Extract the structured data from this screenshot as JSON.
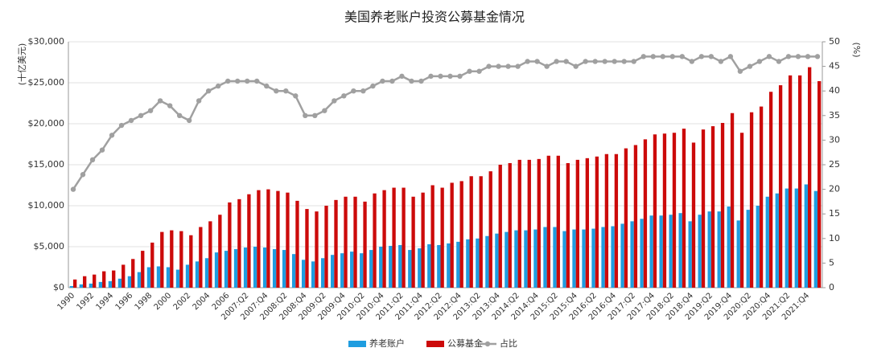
{
  "chart_data": {
    "type": "bar",
    "title": "美国养老账户投资公募基金情况",
    "ylabel": "(十亿美元)",
    "y2label": "(%)",
    "categories": [
      "1990",
      null,
      "1992",
      null,
      "1994",
      null,
      "1996",
      null,
      "1998",
      null,
      "2000",
      null,
      "2002",
      null,
      "2004",
      null,
      "2006",
      null,
      "2007:Q2",
      null,
      "2007:Q4",
      null,
      "2008:Q2",
      null,
      "2008:Q4",
      null,
      "2009:Q2",
      null,
      "2009:Q4",
      null,
      "2010:Q2",
      null,
      "2010:Q4",
      null,
      "2011:Q2",
      null,
      "2011:Q4",
      null,
      "2012:Q2",
      null,
      "2012:Q4",
      null,
      "2013:Q2",
      null,
      "2013:Q4",
      null,
      "2014:Q2",
      null,
      "2014:Q4",
      null,
      "2015:Q2",
      null,
      "2015:Q4",
      null,
      "2016:Q2",
      null,
      "2016:Q4",
      null,
      "2017:Q2",
      null,
      "2017:Q4",
      null,
      "2018:Q2",
      null,
      "2018:Q4",
      null,
      "2019:Q2",
      null,
      "2019:Q4",
      null,
      "2020:Q2",
      null,
      "2020:Q4",
      null,
      "2021:Q2",
      null,
      "2021:Q4",
      null
    ],
    "series": [
      {
        "name": "养老账户",
        "color": "#1f9de0",
        "values": [
          200,
          400,
          500,
          700,
          800,
          1100,
          1400,
          1900,
          2500,
          2600,
          2500,
          2200,
          2800,
          3200,
          3600,
          4300,
          4500,
          4700,
          4900,
          5000,
          4900,
          4700,
          4600,
          4100,
          3400,
          3200,
          3600,
          4000,
          4200,
          4400,
          4200,
          4600,
          5000,
          5100,
          5200,
          4600,
          4800,
          5300,
          5200,
          5400,
          5600,
          5900,
          6000,
          6300,
          6600,
          6800,
          7000,
          7000,
          7100,
          7400,
          7400,
          6900,
          7100,
          7100,
          7200,
          7400,
          7500,
          7800,
          8100,
          8400,
          8800,
          8800,
          8900,
          9100,
          8100,
          8900,
          9300,
          9300,
          9900,
          8200,
          9500,
          10000,
          11100,
          11500,
          12100,
          12100,
          12600,
          11800
        ]
      },
      {
        "name": "公募基金",
        "color": "#cc0a0a",
        "values": [
          1000,
          1400,
          1600,
          2000,
          2100,
          2800,
          3500,
          4500,
          5500,
          6800,
          7000,
          6900,
          6400,
          7400,
          8100,
          8900,
          10400,
          10800,
          11400,
          11900,
          12000,
          11800,
          11600,
          10600,
          9600,
          9300,
          10000,
          10700,
          11100,
          11100,
          10500,
          11500,
          11900,
          12200,
          12200,
          11100,
          11600,
          12500,
          12200,
          12800,
          13000,
          13600,
          13600,
          14200,
          15000,
          15200,
          15600,
          15600,
          15700,
          16100,
          16100,
          15200,
          15600,
          15800,
          16000,
          16300,
          16300,
          17000,
          17400,
          18100,
          18700,
          18800,
          18900,
          19400,
          17700,
          19300,
          19700,
          20100,
          21300,
          18900,
          21400,
          22100,
          23900,
          24700,
          25900,
          25900,
          26900,
          25200
        ]
      },
      {
        "name": "占比",
        "color": "#a0a0a0",
        "type": "line",
        "axis": "y2",
        "values": [
          20,
          23,
          26,
          28,
          31,
          33,
          34,
          35,
          36,
          38,
          37,
          35,
          34,
          38,
          40,
          41,
          42,
          42,
          42,
          42,
          41,
          40,
          40,
          39,
          35,
          35,
          36,
          38,
          39,
          40,
          40,
          41,
          42,
          42,
          43,
          42,
          42,
          43,
          43,
          43,
          43,
          44,
          44,
          45,
          45,
          45,
          45,
          46,
          46,
          45,
          46,
          46,
          45,
          46,
          46,
          46,
          46,
          46,
          46,
          47,
          47,
          47,
          47,
          47,
          46,
          47,
          47,
          46,
          47,
          44,
          45,
          46,
          47,
          46,
          47,
          47,
          47,
          47
        ]
      }
    ],
    "ylim": [
      0,
      30000
    ],
    "yticks": [
      {
        "value": 0,
        "label": "$0"
      },
      {
        "value": 5000,
        "label": "$5,000"
      },
      {
        "value": 10000,
        "label": "$10,000"
      },
      {
        "value": 15000,
        "label": "$15,000"
      },
      {
        "value": 20000,
        "label": "$20,000"
      },
      {
        "value": 25000,
        "label": "$25,000"
      },
      {
        "value": 30000,
        "label": "$30,000"
      }
    ],
    "y2lim": [
      0,
      50
    ],
    "y2ticks": [
      0,
      5,
      10,
      15,
      20,
      25,
      30,
      35,
      40,
      45,
      50
    ],
    "grid": true,
    "legend": "bottom"
  }
}
